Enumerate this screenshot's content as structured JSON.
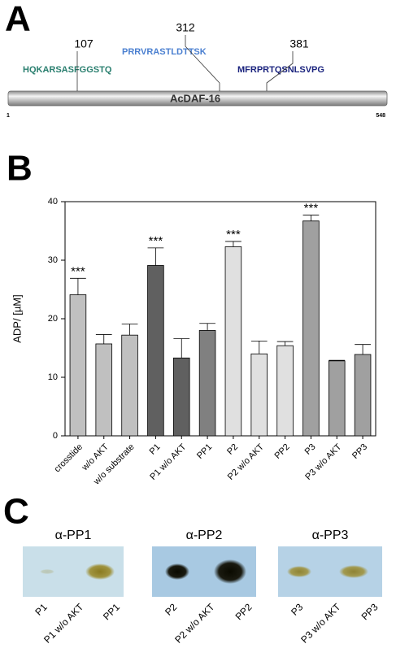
{
  "panel_a": {
    "label": "A",
    "protein": "AcDAF-16",
    "start": 1,
    "end": 548,
    "sites": [
      {
        "position": 107,
        "peptide": "HQKARSASFGGSTQ",
        "color": "#2a7f6f"
      },
      {
        "position": 312,
        "peptide": "PRRVRASTLDTTSK",
        "color": "#4a7fd0"
      },
      {
        "position": 381,
        "peptide": "MFRPRTQSNLSVPG",
        "color": "#1a237e"
      }
    ]
  },
  "chart_data": {
    "type": "bar",
    "panel_label": "B",
    "ylabel": "ADP/ [µM]",
    "categories": [
      "crosstide",
      "w/o AKT",
      "w/o substrate",
      "P1",
      "P1 w/o AKT",
      "PP1",
      "P2",
      "P2 w/o AKT",
      "PP2",
      "P3",
      "P3 w/o AKT",
      "PP3"
    ],
    "values": [
      24.1,
      15.7,
      17.2,
      29.1,
      13.3,
      18.0,
      32.3,
      14.0,
      15.4,
      36.7,
      12.8,
      13.9
    ],
    "errors": [
      2.8,
      1.6,
      1.9,
      3.0,
      3.3,
      1.2,
      0.9,
      2.2,
      0.7,
      1.0,
      0.1,
      1.7
    ],
    "significance": [
      "***",
      null,
      null,
      "***",
      null,
      null,
      "***",
      null,
      null,
      "***",
      null,
      null
    ],
    "colors": [
      "#c0c0c0",
      "#c0c0c0",
      "#c0c0c0",
      "#606060",
      "#606060",
      "#808080",
      "#e0e0e0",
      "#e0e0e0",
      "#e0e0e0",
      "#a0a0a0",
      "#a0a0a0",
      "#a0a0a0"
    ],
    "ylim": [
      0,
      40
    ],
    "yticks": [
      0,
      10,
      20,
      30,
      40
    ]
  },
  "panel_c": {
    "label": "C",
    "blots": [
      {
        "title": "α-PP1",
        "lanes": [
          "P1",
          "P1 w/o AKT",
          "PP1"
        ]
      },
      {
        "title": "α-PP2",
        "lanes": [
          "P2",
          "P2 w/o AKT",
          "PP2"
        ]
      },
      {
        "title": "α-PP3",
        "lanes": [
          "P3",
          "P3 w/o AKT",
          "PP3"
        ]
      }
    ]
  }
}
